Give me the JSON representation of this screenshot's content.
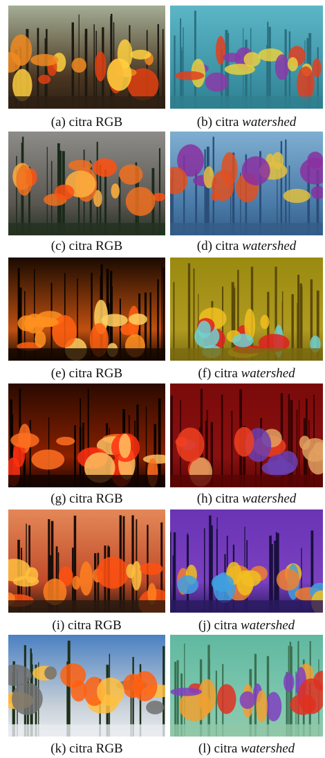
{
  "panels": [
    {
      "label": "(a) citra RGB"
    },
    {
      "label": "(b) citra",
      "italic": "watershed"
    },
    {
      "label": "(c) citra RGB"
    },
    {
      "label": "(d) citra",
      "italic": "watershed"
    },
    {
      "label": "(e) citra RGB"
    },
    {
      "label": "(f) citra",
      "italic": "watershed"
    },
    {
      "label": "(g) citra RGB"
    },
    {
      "label": "(h) citra",
      "italic": "watershed"
    },
    {
      "label": "(i) citra RGB"
    },
    {
      "label": "(j) citra",
      "italic": "watershed"
    },
    {
      "label": "(k) citra RGB"
    },
    {
      "label": "(l) citra",
      "italic": "watershed"
    }
  ]
}
